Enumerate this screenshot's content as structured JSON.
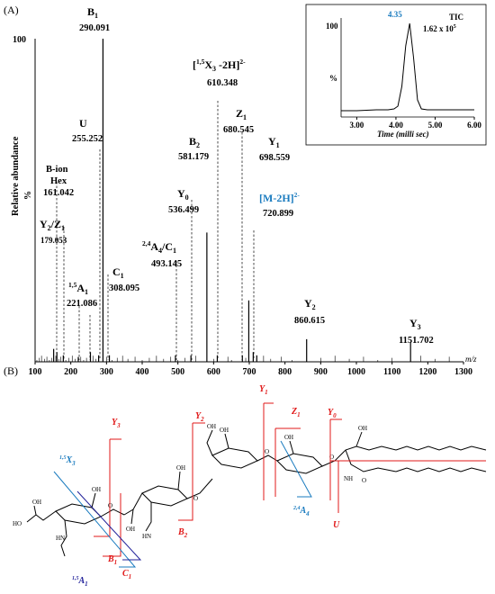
{
  "panel_a_label": "(A)",
  "panel_b_label": "(B)",
  "colors": {
    "blue": "#1a7bbf",
    "red": "#e01818",
    "navy": "#22229a",
    "black": "#000000"
  },
  "chart_data": [
    {
      "type": "bar",
      "title": "",
      "xlabel": "m/z",
      "ylabel": "Relative abundance",
      "y_percent_symbol": "%",
      "ymax_label": "100",
      "xlim": [
        100,
        1300
      ],
      "ylim": [
        0,
        100
      ],
      "xticks": [
        "100",
        "200",
        "300",
        "400",
        "500",
        "600",
        "700",
        "800",
        "900",
        "1000",
        "1100",
        "1200",
        "1300"
      ],
      "peaks": [
        {
          "mz": 152,
          "intensity": 4
        },
        {
          "mz": 161,
          "intensity": 3
        },
        {
          "mz": 179,
          "intensity": 2
        },
        {
          "mz": 221,
          "intensity": 1.5
        },
        {
          "mz": 255,
          "intensity": 3
        },
        {
          "mz": 278,
          "intensity": 2
        },
        {
          "mz": 290.091,
          "intensity": 100
        },
        {
          "mz": 308.095,
          "intensity": 2
        },
        {
          "mz": 493.145,
          "intensity": 2
        },
        {
          "mz": 536.499,
          "intensity": 2
        },
        {
          "mz": 581.179,
          "intensity": 40
        },
        {
          "mz": 610.348,
          "intensity": 2
        },
        {
          "mz": 680.545,
          "intensity": 2
        },
        {
          "mz": 698.559,
          "intensity": 19
        },
        {
          "mz": 711,
          "intensity": 3
        },
        {
          "mz": 720.899,
          "intensity": 2
        },
        {
          "mz": 860.615,
          "intensity": 7
        },
        {
          "mz": 1151.702,
          "intensity": 6
        }
      ],
      "annotations": [
        {
          "name": "B1",
          "label": "B",
          "sub": "1",
          "mz_text": "290.091"
        },
        {
          "name": "X3",
          "label": "[",
          "sup1": "1,5",
          "mid": "X",
          "sub": "3",
          "tail": " -2H]",
          "sup2": "2-",
          "mz_text": "610.348"
        },
        {
          "name": "U",
          "label": "U",
          "mz_text": "255.252"
        },
        {
          "name": "Z1",
          "label": "Z",
          "sub": "1",
          "mz_text": "680.545"
        },
        {
          "name": "Y1",
          "label": "Y",
          "sub": "1",
          "mz_text": "698.559"
        },
        {
          "name": "B2",
          "label": "B",
          "sub": "2",
          "mz_text": "581.179"
        },
        {
          "name": "Bion",
          "line1": "B-ion",
          "line2": "Hex",
          "mz_text": "161.042"
        },
        {
          "name": "Y0",
          "label": "Y",
          "sub": "0",
          "mz_text": "536.499"
        },
        {
          "name": "MH",
          "label": "[M-2H]",
          "sup": "2-",
          "mz_text": "720.899"
        },
        {
          "name": "Y2Z1",
          "label": "Y",
          "sub": "2",
          "mid": "/Z",
          "sub2": "1",
          "mz_text": "179.053"
        },
        {
          "name": "A4C1",
          "sup": "2,4",
          "label": "A",
          "sub": "4",
          "mid": "/C",
          "sub2": "1",
          "mz_text": "493.145"
        },
        {
          "name": "A1",
          "sup": "1,5",
          "label": "A",
          "sub": "1",
          "mz_text": "221.086"
        },
        {
          "name": "C1",
          "label": "C",
          "sub": "1",
          "mz_text": "308.095"
        },
        {
          "name": "Y2",
          "label": "Y",
          "sub": "2",
          "mz_text": "860.615"
        },
        {
          "name": "Y3",
          "label": "Y",
          "sub": "3",
          "mz_text": "1151.702"
        }
      ]
    },
    {
      "type": "line",
      "title": "TIC",
      "scale_text": "1.62 x 10",
      "scale_exp": "5",
      "xlabel": "Time",
      "xlabel_unit": "(milli sec)",
      "ylabel": "%",
      "ymax_label": "100",
      "xlim": [
        2.6,
        6.0
      ],
      "ylim": [
        0,
        100
      ],
      "xticks": [
        "3.00",
        "4.00",
        "5.00",
        "6.00"
      ],
      "peak_label": "4.35",
      "x": [
        2.6,
        3.0,
        3.5,
        3.8,
        3.95,
        4.05,
        4.15,
        4.25,
        4.35,
        4.45,
        4.55,
        4.65,
        4.8,
        5.2,
        5.6,
        6.0
      ],
      "y": [
        3,
        3,
        4,
        4,
        5,
        8,
        30,
        75,
        100,
        62,
        15,
        5,
        4,
        4,
        4,
        4
      ]
    }
  ],
  "structure": {
    "labels": [
      {
        "name": "Y3",
        "base": "Y",
        "sub": "3",
        "color": "#e01818"
      },
      {
        "name": "Y2",
        "base": "Y",
        "sub": "2",
        "color": "#e01818"
      },
      {
        "name": "Y1",
        "base": "Y",
        "sub": "1",
        "color": "#e01818"
      },
      {
        "name": "Z1",
        "base": "Z",
        "sub": "1",
        "color": "#e01818"
      },
      {
        "name": "Y0",
        "base": "Y",
        "sub": "0",
        "color": "#e01818"
      },
      {
        "name": "X3",
        "sup": "1,5",
        "base": "X",
        "sub": "3",
        "color": "#1a7bbf"
      },
      {
        "name": "A4",
        "sup": "2,4",
        "base": "A",
        "sub": "4",
        "color": "#1a7bbf"
      },
      {
        "name": "B1",
        "base": "B",
        "sub": "1",
        "color": "#e01818"
      },
      {
        "name": "C1",
        "base": "C",
        "sub": "1",
        "color": "#e01818"
      },
      {
        "name": "B2",
        "base": "B",
        "sub": "2",
        "color": "#e01818"
      },
      {
        "name": "U",
        "base": "U",
        "color": "#e01818"
      },
      {
        "name": "A1",
        "sup": "1,5",
        "base": "A",
        "sub": "1",
        "color": "#22229a"
      }
    ],
    "atoms": {
      "OH": "OH",
      "O": "O",
      "HN": "HN",
      "NH": "NH",
      "HO": "HO"
    }
  }
}
